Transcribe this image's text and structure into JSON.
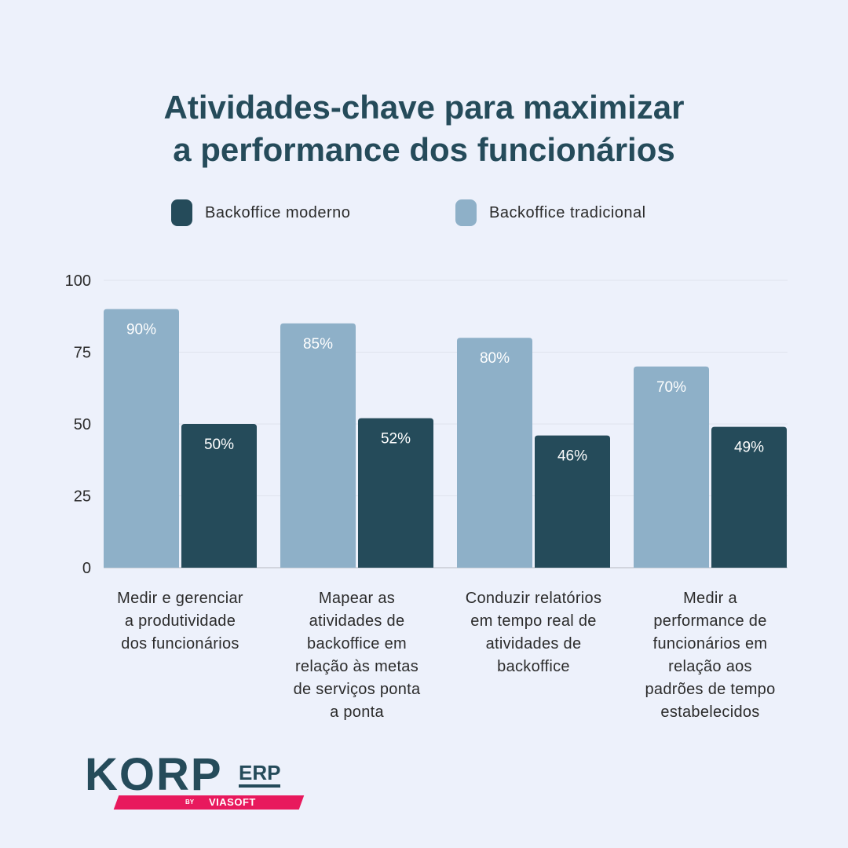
{
  "chart_data": {
    "type": "bar",
    "title_lines": [
      "Atividades-chave para maximizar",
      "a performance dos funcionários"
    ],
    "legend": [
      {
        "name": "Backoffice moderno",
        "color": "#254b5a"
      },
      {
        "name": "Backoffice tradicional",
        "color": "#8eb0c8"
      }
    ],
    "categories": [
      [
        "Medir e gerenciar",
        "a produtividade",
        "dos funcionários"
      ],
      [
        "Mapear as",
        "atividades de",
        "backoffice em",
        "relação às metas",
        "de serviços ponta",
        "a ponta"
      ],
      [
        "Conduzir relatórios",
        "em tempo real de",
        "atividades de",
        "backoffice"
      ],
      [
        "Medir a",
        "performance de",
        "funcionários em",
        "relação aos",
        "padrões de tempo",
        "estabelecidos"
      ]
    ],
    "series": [
      {
        "name": "Backoffice tradicional",
        "color": "#8eb0c8",
        "values": [
          90,
          85,
          80,
          70
        ],
        "labels": [
          "90%",
          "85%",
          "80%",
          "70%"
        ]
      },
      {
        "name": "Backoffice moderno",
        "color": "#254b5a",
        "values": [
          50,
          52,
          46,
          49
        ],
        "labels": [
          "50%",
          "52%",
          "46%",
          "49%"
        ]
      }
    ],
    "yticks": [
      "0",
      "25",
      "50",
      "75",
      "100"
    ],
    "ylim": [
      0,
      100
    ],
    "grid": true,
    "xlabel": "",
    "ylabel": ""
  },
  "logo": {
    "main": "KORP",
    "suffix": "ERP",
    "by": "BY",
    "brand": "VIASOFT"
  }
}
